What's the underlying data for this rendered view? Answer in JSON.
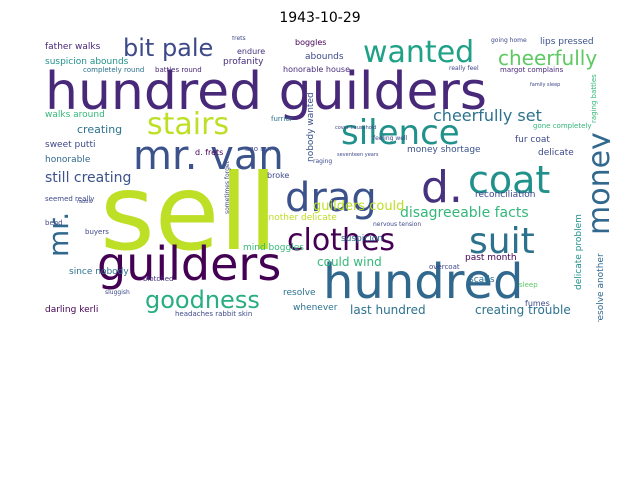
{
  "title": "1943-10-29",
  "words": [
    {
      "text": "sell",
      "color": "#bddf26"
    },
    {
      "text": "hundred guilders",
      "color": "#482878"
    },
    {
      "text": "hundred",
      "color": "#31688e"
    },
    {
      "text": "guilders",
      "color": "#440154"
    },
    {
      "text": "mr. van",
      "color": "#3b528b"
    },
    {
      "text": "drag",
      "color": "#3b528b"
    },
    {
      "text": "d.",
      "color": "#46327e"
    },
    {
      "text": "coat",
      "color": "#21918c"
    },
    {
      "text": "suit",
      "color": "#2c728e"
    },
    {
      "text": "money",
      "color": "#31688e"
    },
    {
      "text": "clothes",
      "color": "#440154"
    },
    {
      "text": "silence",
      "color": "#21918c"
    },
    {
      "text": "stairs",
      "color": "#bddf26"
    },
    {
      "text": "wanted",
      "color": "#1fa187"
    },
    {
      "text": "bit pale",
      "color": "#3e4989"
    },
    {
      "text": "goodness",
      "color": "#28ae80"
    },
    {
      "text": "mr.",
      "color": "#31688e"
    },
    {
      "text": "cheerfully",
      "color": "#5ec962"
    },
    {
      "text": "cheerfully set",
      "color": "#2c728e"
    },
    {
      "text": "disagreeable facts",
      "color": "#35b779"
    },
    {
      "text": "guilders could",
      "color": "#bddf26"
    },
    {
      "text": "still creating",
      "color": "#3b528b"
    },
    {
      "text": "could wind",
      "color": "#35b779"
    },
    {
      "text": "last hundred",
      "color": "#2c728e"
    },
    {
      "text": "creating trouble",
      "color": "#2c728e"
    },
    {
      "text": "father walks",
      "color": "#482878"
    },
    {
      "text": "suspicion abounds",
      "color": "#21918c"
    },
    {
      "text": "lips pressed",
      "color": "#3b528b"
    },
    {
      "text": "profanity",
      "color": "#472d7b"
    },
    {
      "text": "creating",
      "color": "#2c728e"
    },
    {
      "text": "walks around",
      "color": "#35b779"
    },
    {
      "text": "sweet putti",
      "color": "#3e4989"
    },
    {
      "text": "honorable",
      "color": "#31688e"
    },
    {
      "text": "mind boggles",
      "color": "#35b779"
    },
    {
      "text": "darling kerli",
      "color": "#440154"
    },
    {
      "text": "since nobody",
      "color": "#2c728e"
    },
    {
      "text": "another delicate",
      "color": "#bddf26"
    },
    {
      "text": "money shortage",
      "color": "#3b528b"
    },
    {
      "text": "fur coat",
      "color": "#3e4989"
    },
    {
      "text": "delicate",
      "color": "#3e4989"
    },
    {
      "text": "reconciliation",
      "color": "#3e4989"
    },
    {
      "text": "past month",
      "color": "#440154"
    },
    {
      "text": "suspicion",
      "color": "#2c728e"
    },
    {
      "text": "resolve",
      "color": "#2c728e"
    },
    {
      "text": "whenever",
      "color": "#2c728e"
    },
    {
      "text": "honorable house",
      "color": "#472d7b"
    },
    {
      "text": "boggles",
      "color": "#440154"
    },
    {
      "text": "abounds",
      "color": "#3e4989"
    },
    {
      "text": "endure",
      "color": "#46327e"
    },
    {
      "text": "furrier",
      "color": "#2c728e"
    },
    {
      "text": "broke",
      "color": "#3e4989"
    },
    {
      "text": "scads",
      "color": "#2c728e"
    },
    {
      "text": "fumes",
      "color": "#3e4989"
    },
    {
      "text": "resolve another",
      "color": "#31688e"
    },
    {
      "text": "delicate problem",
      "color": "#21918c"
    },
    {
      "text": "completely round",
      "color": "#2c728e"
    },
    {
      "text": "battles round",
      "color": "#482878"
    },
    {
      "text": "margot complains",
      "color": "#482878"
    },
    {
      "text": "really feel",
      "color": "#3e4989"
    },
    {
      "text": "gone completely",
      "color": "#35b779"
    },
    {
      "text": "raging battles",
      "color": "#35b779"
    },
    {
      "text": "nobody wanted",
      "color": "#3b528b"
    },
    {
      "text": "d. frets",
      "color": "#440154"
    },
    {
      "text": "seemed really",
      "color": "#3e4989"
    },
    {
      "text": "blotched",
      "color": "#46327e"
    },
    {
      "text": "overcoat",
      "color": "#3e4989"
    },
    {
      "text": "sluggish",
      "color": "#3e4989"
    },
    {
      "text": "sleep",
      "color": "#5ec962"
    },
    {
      "text": "feeling well",
      "color": "#3e4989"
    },
    {
      "text": "raging",
      "color": "#3e4989"
    },
    {
      "text": "headaches rabbit skin",
      "color": "#3e4989"
    },
    {
      "text": "frets",
      "color": "#3e4989"
    },
    {
      "text": "bend",
      "color": "#3e4989"
    },
    {
      "text": "buyers",
      "color": "#3e4989"
    },
    {
      "text": "going home",
      "color": "#3e4989"
    },
    {
      "text": "ago mr.",
      "color": "#3e4989"
    },
    {
      "text": "sometimes forget",
      "color": "#3e4989"
    },
    {
      "text": "complains",
      "color": "#bddf26"
    },
    {
      "text": "family sleep",
      "color": "#3e4989"
    },
    {
      "text": "seventeen years",
      "color": "#3e4989"
    },
    {
      "text": "cover household",
      "color": "#3e4989"
    },
    {
      "text": "rabbit",
      "color": "#3e4989"
    },
    {
      "text": "nervous tension",
      "color": "#3e4989"
    }
  ]
}
